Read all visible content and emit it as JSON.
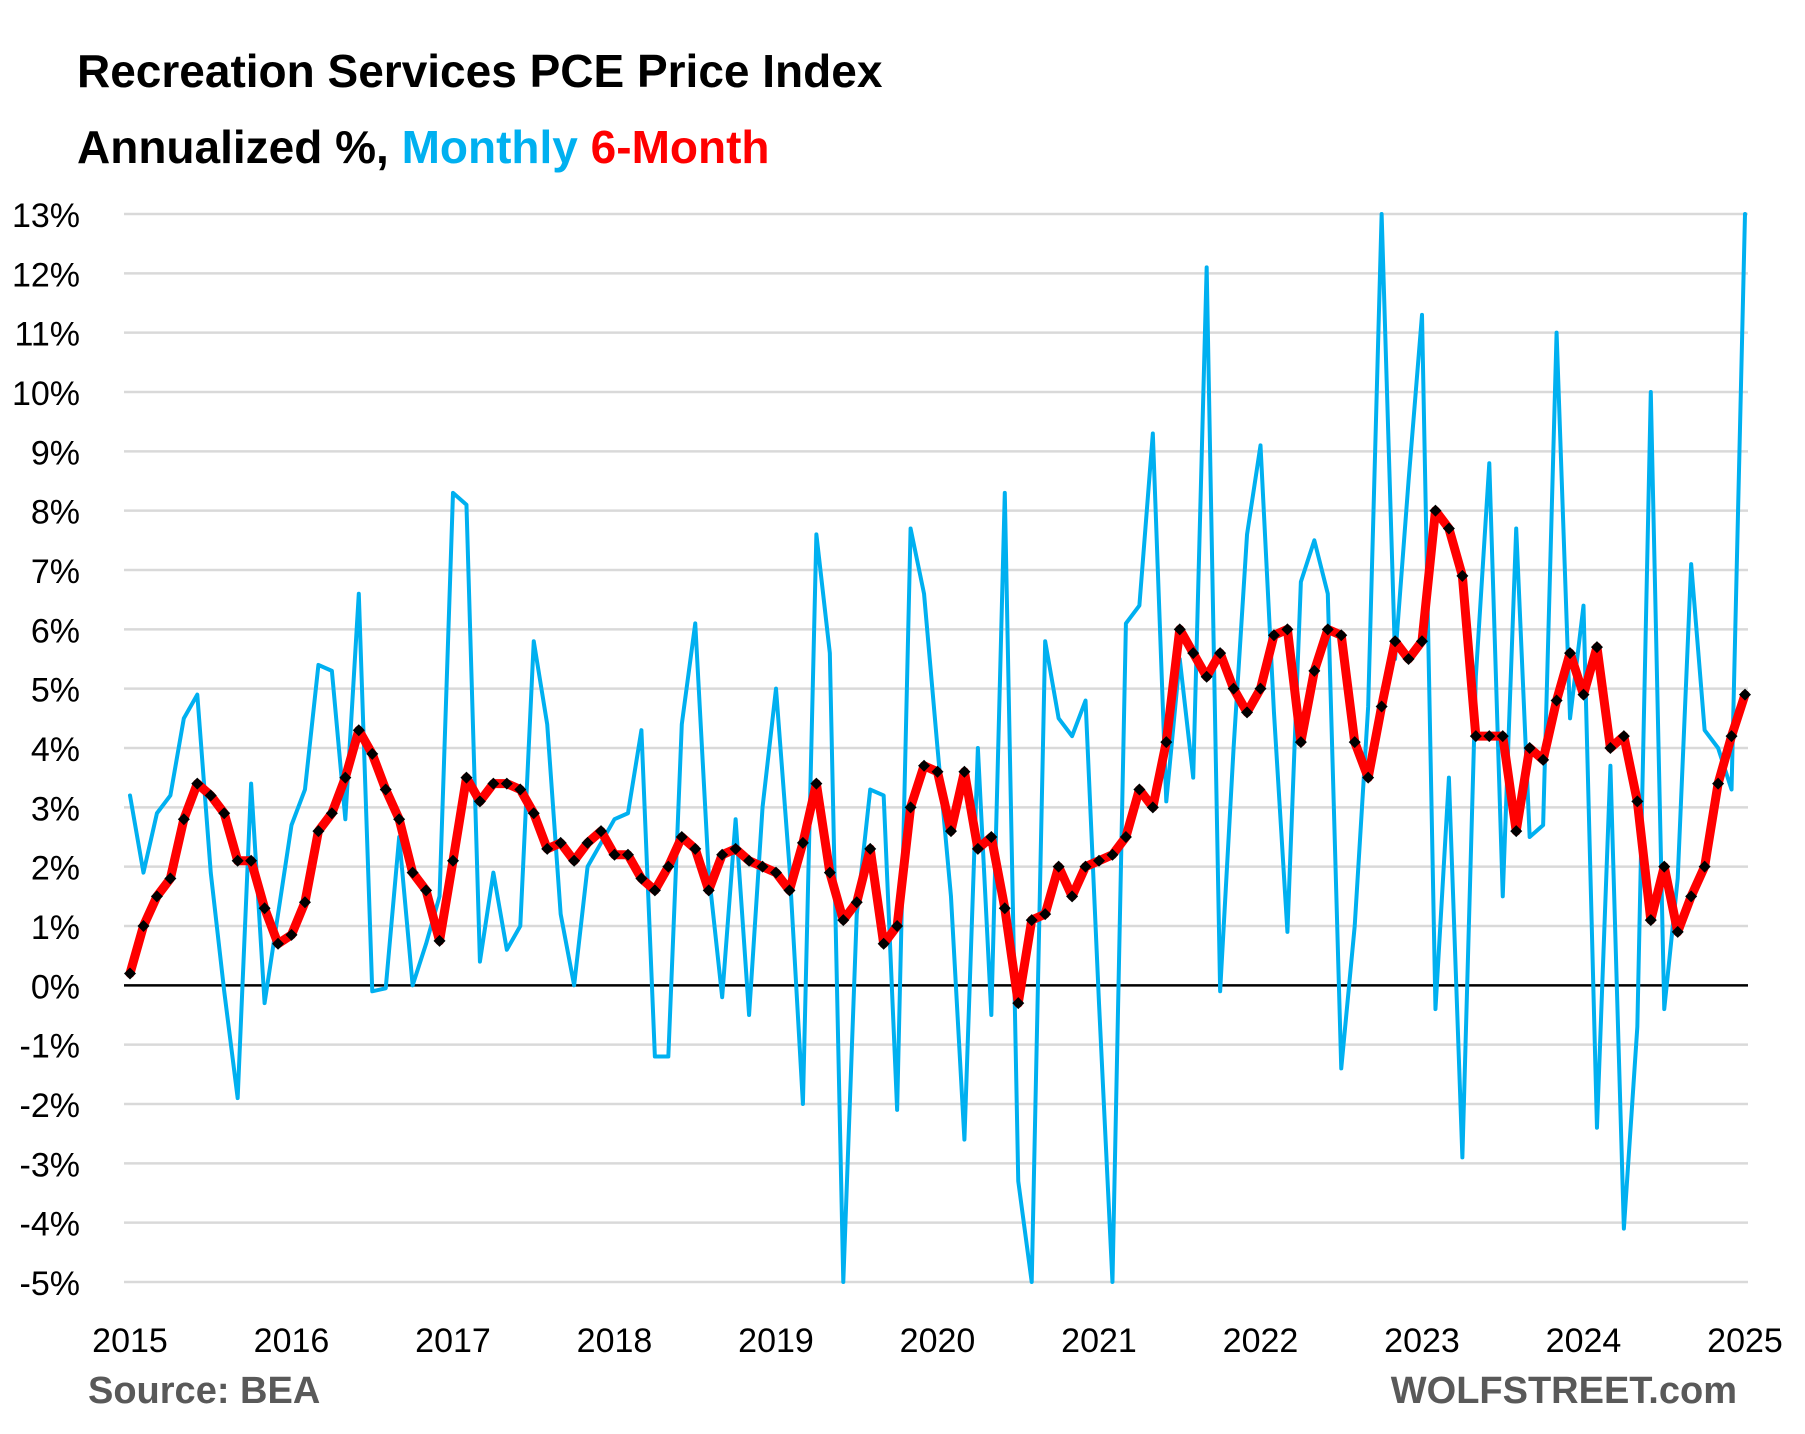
{
  "chart_data": {
    "type": "line",
    "title": "Recreation Services PCE Price Index",
    "subtitle_parts": [
      {
        "text": "Annualized %, ",
        "color": "#000000"
      },
      {
        "text": "Monthly",
        "color": "#00B0F0"
      },
      {
        "text": " ",
        "color": "#000000"
      },
      {
        "text": "6-Month",
        "color": "#FF0000"
      }
    ],
    "xlabel": "",
    "ylabel": "",
    "ylim": [
      -5,
      13
    ],
    "xlim": [
      "2015-01",
      "2025-01"
    ],
    "y_ticks": [
      "13%",
      "12%",
      "11%",
      "10%",
      "9%",
      "8%",
      "7%",
      "6%",
      "5%",
      "4%",
      "3%",
      "2%",
      "1%",
      "0%",
      "-1%",
      "-2%",
      "-3%",
      "-4%",
      "-5%"
    ],
    "y_tick_values": [
      13,
      12,
      11,
      10,
      9,
      8,
      7,
      6,
      5,
      4,
      3,
      2,
      1,
      0,
      -1,
      -2,
      -3,
      -4,
      -5
    ],
    "x_ticks": [
      "2015",
      "2016",
      "2017",
      "2018",
      "2019",
      "2020",
      "2021",
      "2022",
      "2023",
      "2024",
      "2025"
    ],
    "grid": true,
    "legend": "in-title",
    "start": "2015-01",
    "frequency": "monthly",
    "series": [
      {
        "name": "Monthly",
        "color": "#00B0F0",
        "markers": false,
        "values": [
          3.2,
          1.9,
          2.9,
          3.2,
          4.5,
          4.9,
          1.9,
          -0.1,
          -1.9,
          3.4,
          -0.3,
          1.2,
          2.7,
          3.3,
          5.4,
          5.3,
          2.8,
          6.6,
          -0.1,
          -0.05,
          2.5,
          0.0,
          0.7,
          1.5,
          8.3,
          8.1,
          0.4,
          1.9,
          0.6,
          1.0,
          5.8,
          4.4,
          1.2,
          0.0,
          2.0,
          2.4,
          2.8,
          2.9,
          4.3,
          -1.2,
          -1.2,
          4.4,
          6.1,
          1.9,
          -0.2,
          2.8,
          -0.5,
          3.0,
          5.0,
          2.0,
          -2.0,
          7.6,
          5.6,
          -5.0,
          1.2,
          3.3,
          3.2,
          -2.1,
          7.7,
          6.6,
          4.0,
          1.5,
          -2.6,
          4.0,
          -0.5,
          8.3,
          -3.3,
          -5.0,
          5.8,
          4.5,
          4.2,
          4.8,
          -0.3,
          -5.0,
          6.1,
          6.4,
          9.3,
          3.1,
          5.5,
          3.5,
          12.1,
          -0.1,
          4.0,
          7.6,
          9.1,
          4.6,
          0.9,
          6.8,
          7.5,
          6.6,
          -1.4,
          1.0,
          4.7,
          13.0,
          5.5,
          8.5,
          11.3,
          -0.4,
          3.5,
          -2.9,
          5.2,
          8.8,
          1.5,
          7.7,
          2.5,
          2.7,
          11.0,
          4.5,
          6.4,
          -2.4,
          3.7,
          -4.1,
          -0.7,
          10.0,
          -0.4,
          1.8,
          7.1,
          4.3,
          4.0,
          3.3,
          13.0
        ]
      },
      {
        "name": "6-Month",
        "color": "#FF0000",
        "markers": true,
        "marker_color": "#000000",
        "values": [
          0.2,
          1.0,
          1.5,
          1.8,
          2.8,
          3.4,
          3.2,
          2.9,
          2.1,
          2.1,
          1.3,
          0.7,
          0.85,
          1.4,
          2.6,
          2.9,
          3.5,
          4.3,
          3.9,
          3.3,
          2.8,
          1.9,
          1.6,
          0.75,
          2.1,
          3.5,
          3.1,
          3.4,
          3.4,
          3.3,
          2.9,
          2.3,
          2.4,
          2.1,
          2.4,
          2.6,
          2.2,
          2.2,
          1.8,
          1.6,
          2.0,
          2.5,
          2.3,
          1.6,
          2.2,
          2.3,
          2.1,
          2.0,
          1.9,
          1.6,
          2.4,
          3.4,
          1.9,
          1.1,
          1.4,
          2.3,
          0.7,
          1.0,
          3.0,
          3.7,
          3.6,
          2.6,
          3.6,
          2.3,
          2.5,
          1.3,
          -0.3,
          1.1,
          1.2,
          2.0,
          1.5,
          2.0,
          2.1,
          2.2,
          2.5,
          3.3,
          3.0,
          4.1,
          6.0,
          5.6,
          5.2,
          5.6,
          5.0,
          4.6,
          5.0,
          5.9,
          6.0,
          4.1,
          5.3,
          6.0,
          5.9,
          4.1,
          3.5,
          4.7,
          5.8,
          5.5,
          5.8,
          8.0,
          7.7,
          6.9,
          4.2,
          4.2,
          4.2,
          2.6,
          4.0,
          3.8,
          4.8,
          5.6,
          4.9,
          5.7,
          4.0,
          4.2,
          3.1,
          1.1,
          2.0,
          0.9,
          1.5,
          2.0,
          3.4,
          4.2,
          4.9
        ]
      }
    ],
    "annotations": {
      "source": "Source: BEA",
      "brand": "WOLFSTREET.com"
    }
  }
}
